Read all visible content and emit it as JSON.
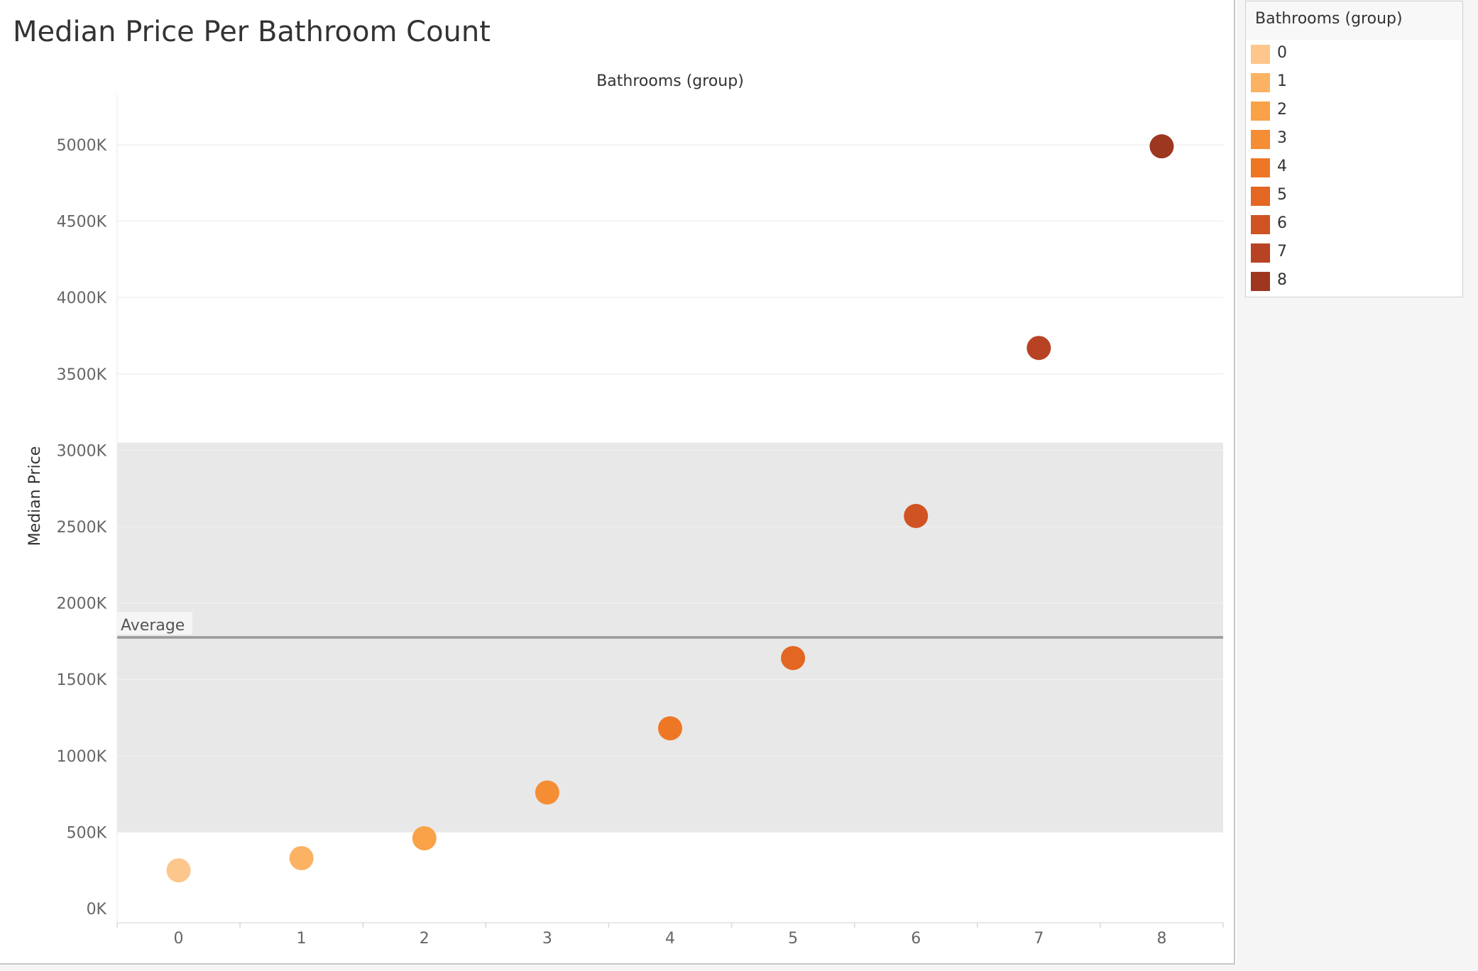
{
  "chart_data": {
    "type": "scatter",
    "title": "Median Price Per Bathroom Count",
    "column_header": "Bathrooms (group)",
    "ylabel": "Median Price",
    "categories": [
      "0",
      "1",
      "2",
      "3",
      "4",
      "5",
      "6",
      "7",
      "8"
    ],
    "values": [
      250,
      330,
      460,
      760,
      1180,
      1640,
      2570,
      3670,
      4990
    ],
    "value_unit": "K",
    "ylim": [
      0,
      5300
    ],
    "yticks": [
      0,
      500,
      1000,
      1500,
      2000,
      2500,
      3000,
      3500,
      4000,
      4500,
      5000
    ],
    "ytick_labels": [
      "0K",
      "500K",
      "1000K",
      "1500K",
      "2000K",
      "2500K",
      "3000K",
      "3500K",
      "4000K",
      "4500K",
      "5000K"
    ],
    "reference_line": {
      "label": "Average",
      "value": 1775
    },
    "reference_band": {
      "from": 500,
      "to": 3050,
      "color": "#e8e8e8"
    },
    "colors": [
      "#fdc68c",
      "#fbb263",
      "#f9a247",
      "#f58d34",
      "#ee7726",
      "#e36622",
      "#d05324",
      "#b74324",
      "#9e3720"
    ],
    "grid": true,
    "legend": {
      "title": "Bathrooms (group)",
      "position": "right",
      "items": [
        "0",
        "1",
        "2",
        "3",
        "4",
        "5",
        "6",
        "7",
        "8"
      ]
    }
  }
}
